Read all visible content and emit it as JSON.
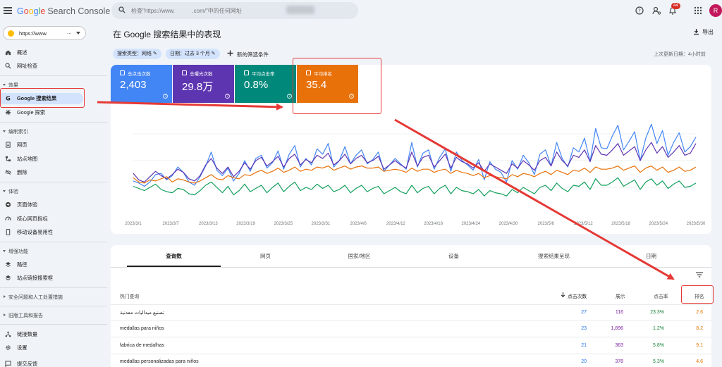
{
  "app": {
    "logo_parts": [
      "G",
      "o",
      "o",
      "g",
      "l",
      "e"
    ],
    "logo_suffix": "Search Console",
    "search_placeholder": "检查\"https://www.           .com/\"中的任何网址",
    "notification_count": "44",
    "avatar_letter": "R"
  },
  "sidebar": {
    "property": "https://www.",
    "property_dots": "...",
    "items": [
      {
        "label": "概述",
        "icon": "home-icon"
      },
      {
        "label": "网址检查",
        "icon": "search-icon"
      },
      {
        "section": "效果"
      },
      {
        "label": "Google 搜索结果",
        "icon": "google-g-icon",
        "active": true
      },
      {
        "label": "Google 探索",
        "icon": "asterisk-icon"
      },
      {
        "section": "编制索引"
      },
      {
        "label": "网页",
        "icon": "page-icon"
      },
      {
        "label": "站点地图",
        "icon": "sitemap-icon"
      },
      {
        "label": "删除",
        "icon": "hidden-eye-icon"
      },
      {
        "section": "体验"
      },
      {
        "label": "页面体验",
        "icon": "plus-circle-icon"
      },
      {
        "label": "核心网页指标",
        "icon": "gauge-icon"
      },
      {
        "label": "移动设备易用性",
        "icon": "phone-icon"
      },
      {
        "section": "增强功能"
      },
      {
        "label": "路径",
        "icon": "layers-icon"
      },
      {
        "label": "站点链接搜索框",
        "icon": "layers-icon"
      },
      {
        "section": "安全问题和人工处置措施"
      },
      {
        "section": "旧版工具和报告"
      },
      {
        "label": "链接数量",
        "icon": "links-icon"
      },
      {
        "label": "设置",
        "icon": "gear-icon"
      },
      {
        "label": "提交反馈",
        "icon": "feedback-icon"
      }
    ]
  },
  "header": {
    "title": "在 Google 搜索结果中的表现",
    "export_label": "导出",
    "filter_search_type": "搜索类型：网络",
    "filter_date": "日期：过去 3 个月",
    "add_filter": "新的筛选条件",
    "last_update": "上次更新日期：4小时前"
  },
  "metrics": [
    {
      "label": "总点击次数",
      "value": "2,403",
      "color": "#4285f4"
    },
    {
      "label": "总曝光次数",
      "value": "29.8万",
      "color": "#5e35b1"
    },
    {
      "label": "平均点击率",
      "value": "0.8%",
      "color": "#00897b"
    },
    {
      "label": "平均排名",
      "value": "35.4",
      "color": "#e8710a"
    }
  ],
  "chart_data": {
    "type": "line",
    "x_ticks": [
      "2023/3/1",
      "2023/3/7",
      "2023/3/13",
      "2023/3/19",
      "2023/3/25",
      "2023/3/31",
      "2023/4/6",
      "2023/4/12",
      "2023/4/18",
      "2023/4/24",
      "2023/4/30",
      "2023/5/6",
      "2023/5/12",
      "2023/5/18",
      "2023/5/24",
      "2023/5/30"
    ],
    "grid": true,
    "series": [
      {
        "color": "#4285f4",
        "values": [
          0.31,
          0.29,
          0.26,
          0.3,
          0.37,
          0.38,
          0.32,
          0.36,
          0.44,
          0.39,
          0.3,
          0.27,
          0.35,
          0.45,
          0.58,
          0.41,
          0.36,
          0.43,
          0.31,
          0.38,
          0.5,
          0.4,
          0.52,
          0.55,
          0.43,
          0.48,
          0.59,
          0.42,
          0.56,
          0.64,
          0.44,
          0.52,
          0.46,
          0.61,
          0.56,
          0.66,
          0.44,
          0.5,
          0.63,
          0.47,
          0.55,
          0.6,
          0.47,
          0.51,
          0.58,
          0.4,
          0.46,
          0.52,
          0.47,
          0.42,
          0.67,
          0.44,
          0.57,
          0.6,
          0.42,
          0.53,
          0.61,
          0.4,
          0.58,
          0.5,
          0.46,
          0.41,
          0.51,
          0.32,
          0.49,
          0.42,
          0.39,
          0.3,
          0.5,
          0.42,
          0.55,
          0.48,
          0.37,
          0.56,
          0.6,
          0.45,
          0.67,
          0.52,
          0.44,
          0.62,
          0.58,
          0.71,
          0.49,
          0.8,
          0.62,
          0.61,
          0.73,
          0.83,
          0.6,
          0.68,
          0.77,
          0.5,
          0.71,
          0.84,
          0.66,
          0.78,
          0.55,
          0.67,
          0.76,
          0.58,
          0.63,
          0.72
        ]
      },
      {
        "color": "#5e35b1",
        "values": [
          0.38,
          0.32,
          0.3,
          0.35,
          0.4,
          0.36,
          0.33,
          0.37,
          0.42,
          0.39,
          0.33,
          0.31,
          0.36,
          0.46,
          0.52,
          0.43,
          0.38,
          0.44,
          0.35,
          0.4,
          0.48,
          0.42,
          0.5,
          0.53,
          0.45,
          0.49,
          0.54,
          0.44,
          0.52,
          0.56,
          0.46,
          0.51,
          0.48,
          0.55,
          0.52,
          0.57,
          0.46,
          0.5,
          0.56,
          0.47,
          0.52,
          0.55,
          0.48,
          0.5,
          0.54,
          0.42,
          0.46,
          0.5,
          0.46,
          0.43,
          0.58,
          0.45,
          0.53,
          0.55,
          0.44,
          0.5,
          0.56,
          0.43,
          0.53,
          0.49,
          0.47,
          0.43,
          0.48,
          0.4,
          0.47,
          0.44,
          0.41,
          0.38,
          0.47,
          0.43,
          0.5,
          0.46,
          0.41,
          0.5,
          0.53,
          0.45,
          0.58,
          0.5,
          0.45,
          0.55,
          0.53,
          0.6,
          0.49,
          0.64,
          0.56,
          0.55,
          0.6,
          0.66,
          0.55,
          0.59,
          0.63,
          0.5,
          0.6,
          0.67,
          0.57,
          0.63,
          0.53,
          0.58,
          0.64,
          0.55,
          0.57,
          0.66
        ]
      },
      {
        "color": "#e8710a",
        "values": [
          0.34,
          0.3,
          0.29,
          0.32,
          0.31,
          0.33,
          0.35,
          0.3,
          0.33,
          0.32,
          0.3,
          0.29,
          0.31,
          0.34,
          0.37,
          0.33,
          0.32,
          0.36,
          0.34,
          0.33,
          0.37,
          0.36,
          0.39,
          0.41,
          0.38,
          0.4,
          0.43,
          0.39,
          0.41,
          0.44,
          0.4,
          0.42,
          0.41,
          0.44,
          0.43,
          0.45,
          0.41,
          0.43,
          0.45,
          0.42,
          0.44,
          0.45,
          0.43,
          0.43,
          0.44,
          0.4,
          0.41,
          0.42,
          0.41,
          0.39,
          0.43,
          0.4,
          0.42,
          0.42,
          0.39,
          0.41,
          0.42,
          0.38,
          0.41,
          0.39,
          0.38,
          0.36,
          0.38,
          0.34,
          0.36,
          0.35,
          0.34,
          0.33,
          0.37,
          0.35,
          0.38,
          0.37,
          0.35,
          0.38,
          0.4,
          0.37,
          0.41,
          0.39,
          0.37,
          0.41,
          0.4,
          0.43,
          0.39,
          0.44,
          0.42,
          0.42,
          0.43,
          0.45,
          0.41,
          0.43,
          0.45,
          0.39,
          0.43,
          0.45,
          0.41,
          0.44,
          0.39,
          0.41,
          0.44,
          0.4,
          0.41,
          0.44
        ]
      },
      {
        "color": "#12a05c",
        "values": [
          0.26,
          0.24,
          0.22,
          0.25,
          0.28,
          0.23,
          0.21,
          0.2,
          0.24,
          0.23,
          0.19,
          0.18,
          0.22,
          0.27,
          0.3,
          0.25,
          0.2,
          0.26,
          0.18,
          0.22,
          0.28,
          0.21,
          0.24,
          0.27,
          0.2,
          0.25,
          0.29,
          0.21,
          0.26,
          0.3,
          0.22,
          0.25,
          0.23,
          0.28,
          0.24,
          0.27,
          0.21,
          0.23,
          0.27,
          0.2,
          0.24,
          0.27,
          0.21,
          0.24,
          0.26,
          0.19,
          0.22,
          0.25,
          0.21,
          0.19,
          0.27,
          0.2,
          0.24,
          0.26,
          0.19,
          0.24,
          0.27,
          0.19,
          0.25,
          0.22,
          0.21,
          0.19,
          0.23,
          0.17,
          0.22,
          0.2,
          0.19,
          0.17,
          0.23,
          0.2,
          0.25,
          0.22,
          0.19,
          0.25,
          0.27,
          0.22,
          0.29,
          0.24,
          0.21,
          0.27,
          0.26,
          0.3,
          0.23,
          0.33,
          0.27,
          0.27,
          0.3,
          0.34,
          0.26,
          0.29,
          0.32,
          0.23,
          0.3,
          0.33,
          0.27,
          0.31,
          0.24,
          0.28,
          0.31,
          0.25,
          0.26,
          0.29
        ]
      }
    ]
  },
  "table": {
    "tabs": [
      "查询数",
      "网页",
      "国家/地区",
      "设备",
      "搜索结果呈现",
      "日期"
    ],
    "columns": [
      "热门查询",
      "点击次数",
      "展示",
      "点击率",
      "排名"
    ],
    "rows": [
      {
        "query": "تصنيع ميداليات معدنية",
        "clicks": "27",
        "impressions": "116",
        "ctr": "23.3%",
        "position": "2.6"
      },
      {
        "query": "medallas para niños",
        "clicks": "23",
        "impressions": "1,896",
        "ctr": "1.2%",
        "position": "8.2"
      },
      {
        "query": "fabrica de medalhas",
        "clicks": "21",
        "impressions": "363",
        "ctr": "5.8%",
        "position": "9.1"
      },
      {
        "query": "medallas personalizadas para niños",
        "clicks": "20",
        "impressions": "378",
        "ctr": "5.3%",
        "position": "4.6"
      }
    ],
    "colors": {
      "clicks": "#1a73e8",
      "impressions": "#7b1fa2",
      "ctr": "#188038",
      "position": "#e37400"
    }
  }
}
